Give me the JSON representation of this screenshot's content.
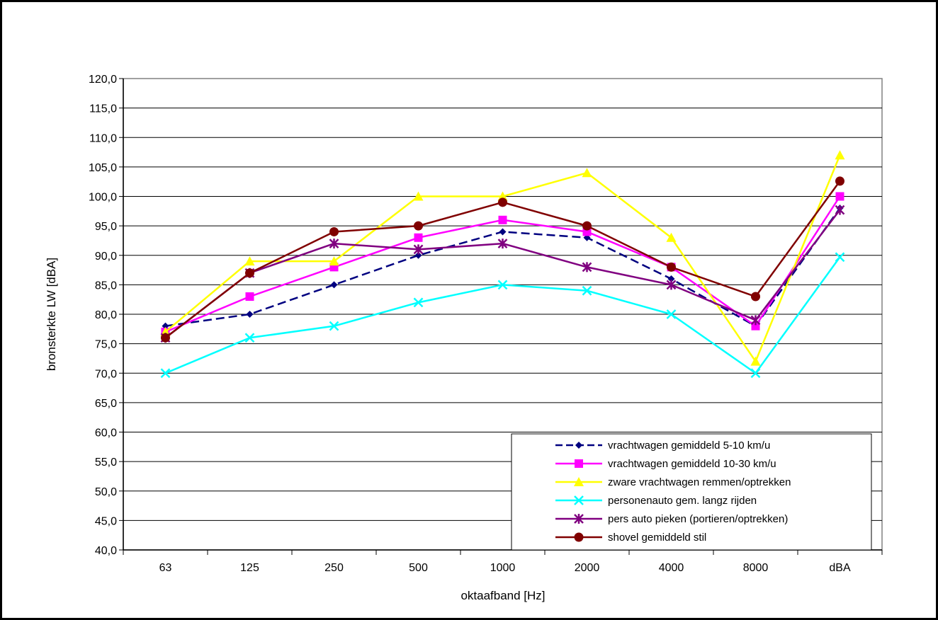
{
  "chart_data": {
    "type": "line",
    "title": "",
    "xlabel": "oktaafband [Hz]",
    "ylabel": "bronsterkte LW [dBA]",
    "categories": [
      "63",
      "125",
      "250",
      "500",
      "1000",
      "2000",
      "4000",
      "8000",
      "dBA"
    ],
    "ylim": [
      40,
      120
    ],
    "ytick_step": 5,
    "ytick_labels": [
      "40,0",
      "45,0",
      "50,0",
      "55,0",
      "60,0",
      "65,0",
      "70,0",
      "75,0",
      "80,0",
      "85,0",
      "90,0",
      "95,0",
      "100,0",
      "105,0",
      "110,0",
      "115,0",
      "120,0"
    ],
    "grid": "horizontal",
    "legend_position": "bottom-right",
    "series": [
      {
        "name": "vrachtwagen gemiddeld 5-10 km/u",
        "color": "#000080",
        "marker": "diamond",
        "dash": true,
        "values": [
          78,
          80,
          85,
          90,
          94,
          93,
          86,
          78,
          98
        ]
      },
      {
        "name": "vrachtwagen gemiddeld 10-30 km/u",
        "color": "#ff00ff",
        "marker": "square",
        "dash": false,
        "values": [
          77,
          83,
          88,
          93,
          96,
          94,
          88,
          78,
          100
        ]
      },
      {
        "name": "zware vrachtwagen remmen/optrekken",
        "color": "#ffff00",
        "marker": "triangle",
        "dash": false,
        "values": [
          77,
          89,
          89,
          100,
          100,
          104,
          93,
          72,
          107
        ]
      },
      {
        "name": "personenauto gem. langz rijden",
        "color": "#00ffff",
        "marker": "x",
        "dash": false,
        "values": [
          70,
          76,
          78,
          82,
          85,
          84,
          80,
          70,
          89.7
        ]
      },
      {
        "name": "pers auto pieken (portieren/optrekken)",
        "color": "#800080",
        "marker": "star",
        "dash": false,
        "values": [
          76,
          87,
          92,
          91,
          92,
          88,
          85,
          79,
          97.7
        ]
      },
      {
        "name": "shovel gemiddeld stil",
        "color": "#800000",
        "marker": "circle",
        "dash": false,
        "values": [
          76,
          87,
          94,
          95,
          99,
          95,
          88,
          83,
          102.6
        ]
      }
    ]
  }
}
